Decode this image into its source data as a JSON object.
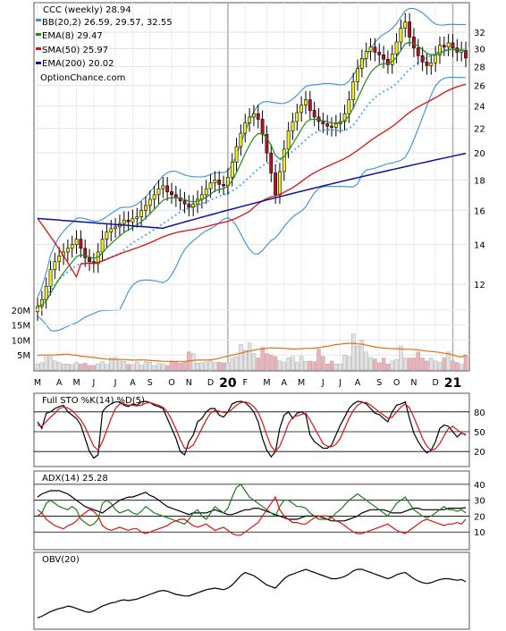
{
  "chart_data": [
    {
      "panel": "price",
      "type": "candlestick",
      "title": "CCC (weekly) 28.94",
      "watermark": "OptionChance.com",
      "ylim": [
        10,
        34
      ],
      "yticks": [
        "12",
        "14",
        "16",
        "18",
        "20",
        "22",
        "24",
        "26",
        "28",
        "30",
        "32"
      ],
      "scale": "log",
      "grid": true,
      "legend": [
        {
          "label": "BB(20,2) 26.59, 29.57, 32.55",
          "color": "#3a8fd6"
        },
        {
          "label": "EMA(8) 29.47",
          "color": "#1f8a1f"
        },
        {
          "label": "SMA(50) 25.97",
          "color": "#e01010"
        },
        {
          "label": "EMA(200) 20.02",
          "color": "#1010a0"
        }
      ],
      "legend_position": "top-left",
      "x": [
        "2019-03-01",
        "2019-03-08",
        "2019-03-15",
        "2019-03-22",
        "2019-03-29",
        "2019-04-05",
        "2019-04-12",
        "2019-04-19",
        "2019-04-26",
        "2019-05-03",
        "2019-05-10",
        "2019-05-17",
        "2019-05-24",
        "2019-05-31",
        "2019-06-07",
        "2019-06-14",
        "2019-06-21",
        "2019-06-28",
        "2019-07-05",
        "2019-07-12",
        "2019-07-19",
        "2019-07-26",
        "2019-08-02",
        "2019-08-09",
        "2019-08-16",
        "2019-08-23",
        "2019-08-30",
        "2019-09-06",
        "2019-09-13",
        "2019-09-20",
        "2019-09-27",
        "2019-10-04",
        "2019-10-11",
        "2019-10-18",
        "2019-10-25",
        "2019-11-01",
        "2019-11-08",
        "2019-11-15",
        "2019-11-22",
        "2019-11-29",
        "2019-12-06",
        "2019-12-13",
        "2019-12-20",
        "2019-12-27",
        "2020-01-03",
        "2020-01-10",
        "2020-01-17",
        "2020-01-24",
        "2020-01-31",
        "2020-02-07",
        "2020-02-14",
        "2020-02-21",
        "2020-02-28",
        "2020-03-06",
        "2020-03-13",
        "2020-03-20",
        "2020-03-27",
        "2020-04-03",
        "2020-04-10",
        "2020-04-17",
        "2020-04-24",
        "2020-05-01",
        "2020-05-08",
        "2020-05-15",
        "2020-05-22",
        "2020-05-29",
        "2020-06-05",
        "2020-06-12",
        "2020-06-19",
        "2020-06-26",
        "2020-07-03",
        "2020-07-10",
        "2020-07-17",
        "2020-07-24",
        "2020-07-31",
        "2020-08-07",
        "2020-08-14",
        "2020-08-21",
        "2020-08-28",
        "2020-09-04",
        "2020-09-11",
        "2020-09-18",
        "2020-09-25",
        "2020-10-02",
        "2020-10-09",
        "2020-10-16",
        "2020-10-23",
        "2020-10-30",
        "2020-11-06",
        "2020-11-13",
        "2020-11-20",
        "2020-11-27",
        "2020-12-04",
        "2020-12-11",
        "2020-12-18",
        "2020-12-25",
        "2021-01-01",
        "2021-01-08",
        "2021-01-15",
        "2021-01-22"
      ],
      "close": [
        11.0,
        11.3,
        11.9,
        12.7,
        13.1,
        13.4,
        13.6,
        13.8,
        14.0,
        14.3,
        13.8,
        13.3,
        13.1,
        13.0,
        13.6,
        14.3,
        14.7,
        14.9,
        15.0,
        15.2,
        15.4,
        15.3,
        15.5,
        15.6,
        16.0,
        16.3,
        16.7,
        17.0,
        17.4,
        17.6,
        17.2,
        17.0,
        16.8,
        16.6,
        16.4,
        16.2,
        16.4,
        16.7,
        17.0,
        17.4,
        17.8,
        18.0,
        17.7,
        17.6,
        18.2,
        19.3,
        20.5,
        21.6,
        22.5,
        23.0,
        23.3,
        22.8,
        21.5,
        20.0,
        18.5,
        17.0,
        18.6,
        20.3,
        21.8,
        22.6,
        23.4,
        24.1,
        24.6,
        23.6,
        23.0,
        22.6,
        22.4,
        22.2,
        22.1,
        22.4,
        22.6,
        23.3,
        24.6,
        26.4,
        27.8,
        28.9,
        29.7,
        30.2,
        29.6,
        29.3,
        28.8,
        28.2,
        29.4,
        30.8,
        32.5,
        33.3,
        31.4,
        30.1,
        29.2,
        28.5,
        28.1,
        28.4,
        29.3,
        30.4,
        30.2,
        30.7,
        30.1,
        29.6,
        29.8,
        28.94
      ],
      "vol_ma20_scale": "millions",
      "bb": {
        "lower": 26.59,
        "middle": 29.57,
        "upper": 32.55
      },
      "ema8": 29.47,
      "sma50": 25.97,
      "ema200": 20.02
    },
    {
      "panel": "volume",
      "type": "bar",
      "yticks": [
        "5M",
        "10M",
        "15M",
        "20M"
      ],
      "ylim": [
        0,
        25
      ],
      "values": [
        2.0,
        2.5,
        5.0,
        4.5,
        3.0,
        2.5,
        2.0,
        2.0,
        1.8,
        2.5,
        2.0,
        2.3,
        1.6,
        1.5,
        2.0,
        2.8,
        1.9,
        4.0,
        4.2,
        3.5,
        2.9,
        1.9,
        1.8,
        2.7,
        1.6,
        2.8,
        2.6,
        1.5,
        2.2,
        2.1,
        1.5,
        3.0,
        2.7,
        2.3,
        2.6,
        6.0,
        5.5,
        2.3,
        2.4,
        2.7,
        3.0,
        2.5,
        2.6,
        2.4,
        2.4,
        4.0,
        4.5,
        8.5,
        6.6,
        9.0,
        5.5,
        4.0,
        7.5,
        5.5,
        5.0,
        4.5,
        3.0,
        2.5,
        4.0,
        4.5,
        2.5,
        4.5,
        2.8,
        3.0,
        2.8,
        7.0,
        4.5,
        2.0,
        3.0,
        2.0,
        2.0,
        5.0,
        4.5,
        12.0,
        8.0,
        10.0,
        6.0,
        4.2,
        3.7,
        2.4,
        4.0,
        2.0,
        3.0,
        3.5,
        8.0,
        4.0,
        4.0,
        4.0,
        6.0,
        4.0,
        3.0,
        4.0,
        3.0,
        2.5,
        4.0,
        6.0,
        3.0,
        2.5,
        1.9,
        5.0
      ],
      "ma": [
        4.9,
        5.0,
        5.0,
        5.0,
        5.0,
        5.1,
        5.2,
        5.3,
        5.0,
        4.9,
        4.6,
        4.5,
        4.3,
        4.2,
        4.0,
        3.8,
        3.6,
        3.5,
        3.5,
        3.5,
        3.5,
        3.4,
        3.3,
        3.3,
        3.4,
        3.3,
        3.2,
        3.1,
        3.0,
        2.9,
        2.9,
        2.9,
        2.9,
        2.9,
        2.9,
        3.0,
        3.2,
        3.3,
        3.3,
        3.3,
        3.4,
        3.6,
        3.9,
        4.3,
        4.6,
        5.0,
        5.3,
        5.6,
        6.0,
        6.3,
        6.6,
        6.9,
        7.0,
        7.2,
        7.4,
        7.3,
        7.3,
        7.2,
        7.1,
        7.0,
        7.0,
        7.1,
        7.2,
        7.2,
        7.3,
        7.5,
        7.7,
        7.9,
        8.2,
        8.5,
        8.6,
        8.8,
        8.9,
        8.9,
        8.7,
        8.6,
        8.3,
        8.0,
        7.7,
        7.5,
        7.3,
        7.2,
        7.1,
        7.1,
        7.0,
        6.9,
        6.9,
        6.8,
        6.7,
        6.5,
        6.3,
        6.2,
        6.0,
        5.9,
        5.6,
        5.4,
        5.0,
        4.6,
        4.3,
        5.0
      ]
    },
    {
      "panel": "stochastic",
      "type": "line",
      "title": "Full STO %K(14) %D(5)",
      "yticks": [
        "20",
        "50",
        "80"
      ],
      "ylim": [
        0,
        100
      ],
      "series": [
        {
          "name": "%K(14)",
          "color": "#000000",
          "values": [
            65,
            55,
            78,
            80,
            85,
            88,
            90,
            80,
            75,
            70,
            60,
            40,
            20,
            10,
            15,
            80,
            88,
            92,
            95,
            95,
            90,
            88,
            92,
            90,
            95,
            96,
            94,
            90,
            88,
            85,
            70,
            55,
            40,
            20,
            15,
            35,
            45,
            65,
            70,
            80,
            85,
            85,
            75,
            72,
            80,
            92,
            95,
            96,
            94,
            88,
            80,
            65,
            40,
            22,
            12,
            20,
            55,
            75,
            80,
            70,
            78,
            80,
            76,
            45,
            35,
            30,
            25,
            25,
            30,
            45,
            60,
            72,
            85,
            92,
            96,
            95,
            92,
            85,
            78,
            76,
            70,
            65,
            80,
            90,
            92,
            95,
            70,
            48,
            35,
            25,
            18,
            22,
            35,
            55,
            60,
            58,
            50,
            42,
            48,
            45
          ]
        },
        {
          "name": "%D(5)",
          "color": "#dd1111",
          "values": [
            60,
            58,
            65,
            72,
            78,
            85,
            87,
            86,
            82,
            75,
            68,
            57,
            42,
            28,
            22,
            35,
            52,
            70,
            85,
            92,
            92,
            90,
            90,
            89,
            90,
            93,
            94,
            92,
            90,
            87,
            80,
            68,
            54,
            38,
            25,
            25,
            30,
            42,
            55,
            68,
            78,
            82,
            81,
            79,
            79,
            84,
            90,
            94,
            95,
            93,
            88,
            79,
            64,
            45,
            28,
            20,
            28,
            44,
            62,
            72,
            74,
            76,
            78,
            68,
            56,
            44,
            32,
            28,
            27,
            31,
            40,
            55,
            70,
            82,
            90,
            94,
            94,
            90,
            85,
            80,
            75,
            70,
            72,
            80,
            87,
            92,
            86,
            72,
            56,
            40,
            28,
            22,
            24,
            32,
            44,
            55,
            58,
            53,
            48,
            46
          ]
        }
      ]
    },
    {
      "panel": "adx",
      "type": "line",
      "title": "ADX(14) 25.28",
      "yticks": [
        "10",
        "20",
        "30",
        "40"
      ],
      "ylim": [
        0,
        45
      ],
      "series": [
        {
          "name": "ADX",
          "color": "#000000",
          "values": [
            32,
            34,
            35,
            36,
            36,
            36,
            35,
            34,
            32,
            30,
            28,
            26,
            25,
            24,
            23,
            22,
            24,
            26,
            28,
            30,
            31,
            32,
            32,
            33,
            34,
            35,
            33,
            32,
            30,
            28,
            26,
            25,
            24,
            23,
            22,
            21,
            22,
            22,
            22,
            22,
            23,
            24,
            23,
            22,
            21,
            21,
            22,
            23,
            24,
            24,
            25,
            25,
            24,
            23,
            22,
            21,
            20,
            19,
            18,
            18,
            18,
            19,
            20,
            20,
            20,
            20,
            19,
            18,
            17,
            17,
            17,
            17,
            18,
            19,
            20,
            22,
            23,
            24,
            24,
            24,
            24,
            23,
            22,
            22,
            22,
            23,
            24,
            25,
            25,
            24,
            24,
            24,
            24,
            24,
            24,
            25,
            25,
            25,
            25,
            25.28
          ]
        },
        {
          "name": "+DI",
          "color": "#1a7a1a",
          "values": [
            24,
            22,
            28,
            30,
            28,
            26,
            25,
            24,
            26,
            24,
            18,
            16,
            14,
            15,
            18,
            28,
            30,
            28,
            24,
            22,
            23,
            24,
            22,
            21,
            23,
            26,
            24,
            22,
            21,
            20,
            19,
            18,
            17,
            16,
            15,
            18,
            22,
            24,
            20,
            18,
            22,
            26,
            24,
            22,
            25,
            32,
            38,
            40,
            36,
            32,
            30,
            28,
            26,
            24,
            22,
            20,
            26,
            30,
            30,
            28,
            26,
            26,
            25,
            22,
            20,
            18,
            18,
            18,
            19,
            22,
            24,
            27,
            30,
            32,
            34,
            32,
            30,
            28,
            26,
            24,
            22,
            20,
            24,
            28,
            30,
            32,
            28,
            24,
            22,
            20,
            19,
            20,
            22,
            24,
            26,
            24,
            24,
            23,
            24,
            22
          ]
        },
        {
          "name": "-DI",
          "color": "#dd1111",
          "values": [
            20,
            22,
            18,
            16,
            14,
            13,
            12,
            14,
            15,
            17,
            20,
            22,
            24,
            23,
            20,
            14,
            12,
            11,
            12,
            13,
            12,
            11,
            12,
            12,
            10,
            9,
            10,
            11,
            12,
            13,
            14,
            16,
            17,
            18,
            18,
            16,
            14,
            13,
            14,
            15,
            13,
            11,
            12,
            13,
            11,
            9,
            8,
            8,
            10,
            12,
            14,
            16,
            20,
            24,
            28,
            32,
            24,
            20,
            18,
            16,
            16,
            15,
            15,
            17,
            19,
            20,
            20,
            20,
            19,
            17,
            16,
            14,
            12,
            10,
            9,
            9,
            10,
            11,
            12,
            13,
            14,
            15,
            13,
            11,
            10,
            9,
            11,
            13,
            15,
            17,
            18,
            17,
            16,
            15,
            14,
            15,
            15,
            16,
            15,
            18
          ]
        }
      ]
    },
    {
      "panel": "obv",
      "type": "line",
      "title": "OBV(20)",
      "series": [
        {
          "name": "OBV",
          "color": "#000000",
          "values": [
            10,
            12,
            15,
            18,
            20,
            22,
            23,
            25,
            24,
            22,
            20,
            18,
            17,
            19,
            22,
            25,
            27,
            29,
            30,
            32,
            33,
            32,
            33,
            34,
            36,
            38,
            40,
            42,
            44,
            45,
            44,
            42,
            40,
            39,
            38,
            38,
            40,
            42,
            44,
            46,
            47,
            48,
            47,
            46,
            48,
            52,
            58,
            64,
            68,
            66,
            64,
            60,
            56,
            52,
            50,
            48,
            54,
            60,
            64,
            66,
            68,
            70,
            72,
            70,
            68,
            66,
            64,
            62,
            60,
            60,
            61,
            63,
            66,
            70,
            72,
            72,
            70,
            68,
            66,
            64,
            62,
            60,
            62,
            65,
            67,
            68,
            64,
            60,
            57,
            55,
            54,
            55,
            57,
            59,
            60,
            60,
            59,
            58,
            59,
            56
          ]
        }
      ]
    }
  ],
  "x_axis": {
    "months": [
      "M",
      "A",
      "M",
      "J",
      "J",
      "A",
      "S",
      "O",
      "N",
      "D",
      "20",
      "F",
      "M",
      "A",
      "M",
      "J",
      "J",
      "A",
      "S",
      "O",
      "N",
      "D",
      "21"
    ]
  }
}
